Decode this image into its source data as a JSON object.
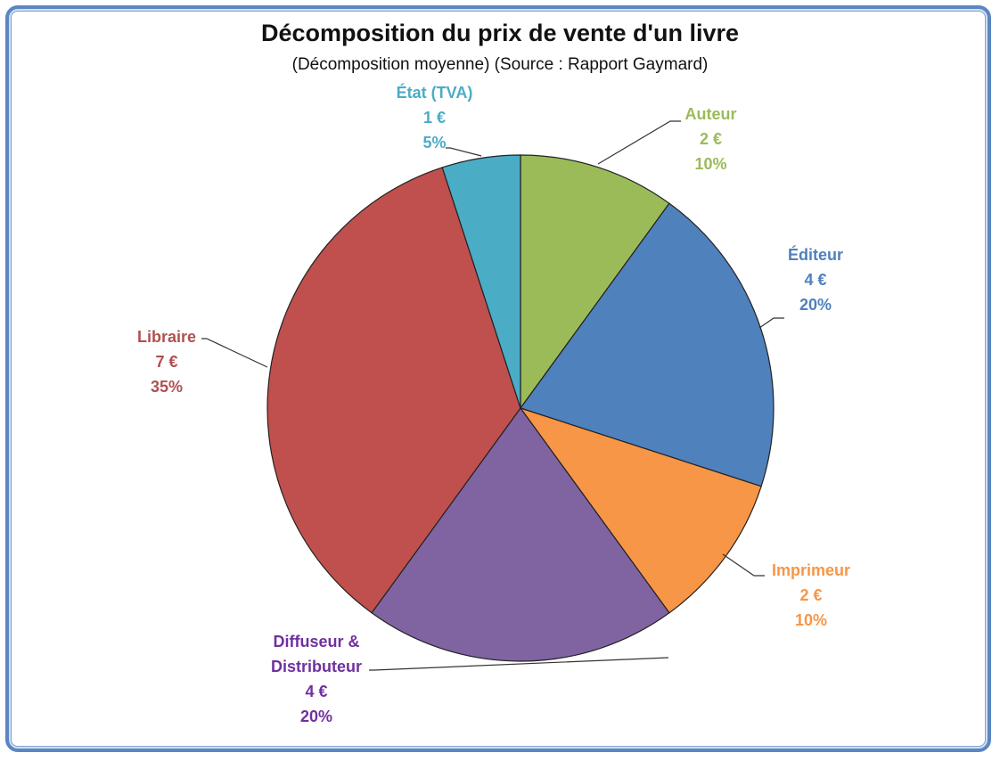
{
  "title": "Décomposition du prix de vente d'un livre",
  "subtitle": "(Décomposition moyenne) (Source : Rapport Gaymard)",
  "labels": {
    "auteur": {
      "name": "Auteur",
      "value": "2 €",
      "pct": "10%"
    },
    "editeur": {
      "name": "Éditeur",
      "value": "4 €",
      "pct": "20%"
    },
    "imprimeur": {
      "name": "Imprimeur",
      "value": "2 €",
      "pct": "10%"
    },
    "diffuseur": {
      "name1": "Diffuseur &",
      "name2": "Distributeur",
      "value": "4 €",
      "pct": "20%"
    },
    "libraire": {
      "name": "Libraire",
      "value": "7 €",
      "pct": "35%"
    },
    "etat": {
      "name": "État (TVA)",
      "value": "1 €",
      "pct": "5%"
    }
  },
  "colors": {
    "auteur": "#9bbb59",
    "editeur": "#4f81bd",
    "imprimeur": "#f79646",
    "diffuseur": "#8064a2",
    "libraire": "#c0504d",
    "etat": "#4bacc6",
    "frame": "#5b86c2"
  },
  "chart_data": {
    "type": "pie",
    "title": "Décomposition du prix de vente d'un livre",
    "subtitle": "(Décomposition moyenne) (Source : Rapport Gaymard)",
    "categories": [
      "Auteur",
      "Éditeur",
      "Imprimeur",
      "Diffuseur & Distributeur",
      "Libraire",
      "État (TVA)"
    ],
    "values": [
      2,
      4,
      2,
      4,
      7,
      1
    ],
    "percentages": [
      10,
      20,
      10,
      20,
      35,
      5
    ],
    "unit": "€",
    "start_angle": "12 o'clock, clockwise",
    "legend": "data labels outside with leader lines"
  }
}
